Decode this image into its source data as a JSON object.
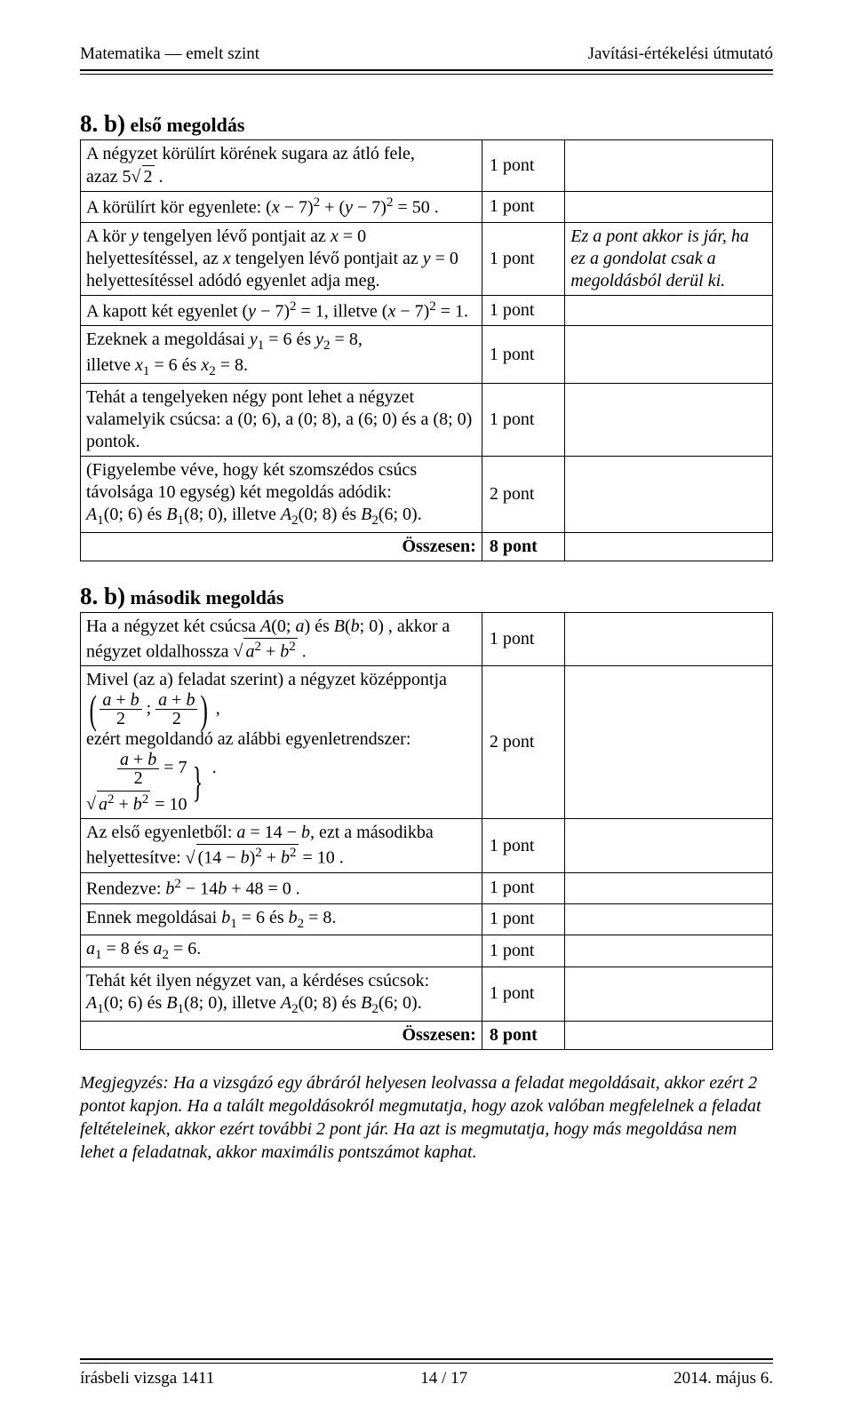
{
  "header": {
    "left": "Matematika — emelt szint",
    "right": "Javítási-értékelési útmutató"
  },
  "solution_a": {
    "heading_num": "8. b)",
    "heading_text": "első megoldás",
    "rows": [
      {
        "step_html": "A négyzet körülírt körének sugara az átló fele,<br>azaz 5<span class='sqrt-sign'></span><span class='sqrt'>2</span> .",
        "pts": "1 pont",
        "note": ""
      },
      {
        "step_html": "A körülírt kör egyenlete: (<span class='ital'>x</span> − 7)<span class='sup'>2</span> + (<span class='ital'>y</span> − 7)<span class='sup'>2</span> = 50 .",
        "pts": "1 pont",
        "note": ""
      },
      {
        "step_html": "A kör <span class='ital'>y</span> tengelyen lévő pontjait az <span class='ital'>x</span> = 0 helyettesítéssel, az <span class='ital'>x</span> tengelyen lévő pontjait az <span class='ital'>y</span> = 0 helyettesítéssel adódó egyenlet adja meg.",
        "pts": "1 pont",
        "note": "Ez a pont akkor is jár, ha ez a gondolat csak a megoldásból derül ki."
      },
      {
        "step_html": "A kapott két egyenlet (<span class='ital'>y</span> − 7)<span class='sup'>2</span> = 1, illetve (<span class='ital'>x</span> − 7)<span class='sup'>2</span> = 1.",
        "pts": "1 pont",
        "note": ""
      },
      {
        "step_html": "Ezeknek a megoldásai <span class='ital'>y</span><span class='sub'>1</span> = 6 és <span class='ital'>y</span><span class='sub'>2</span> = 8,<br>illetve <span class='ital'>x</span><span class='sub'>1</span> = 6 és <span class='ital'>x</span><span class='sub'>2</span> = 8.",
        "pts": "1 pont",
        "note": ""
      },
      {
        "step_html": "Tehát a tengelyeken négy pont lehet a négyzet valamelyik csúcsa: a (0; 6), a (0; 8), a (6; 0) és a (8; 0) pontok.",
        "pts": "1 pont",
        "note": ""
      },
      {
        "step_html": "(Figyelembe véve, hogy két szomszédos csúcs távolsága 10 egység) két megoldás adódik:<br><span class='ital'>A</span><span class='sub'>1</span>(0; 6) és <span class='ital'>B</span><span class='sub'>1</span>(8; 0), illetve <span class='ital'>A</span><span class='sub'>2</span>(0; 8) és <span class='ital'>B</span><span class='sub'>2</span>(6; 0).",
        "pts": "2 pont",
        "note": ""
      }
    ],
    "total_label": "Összesen:",
    "total_pts": "8 pont"
  },
  "solution_b": {
    "heading_num": "8. b)",
    "heading_text": "második megoldás",
    "rows": [
      {
        "step_html": "Ha a négyzet két csúcsa <span class='ital'>A</span>(0; <span class='ital'>a</span>) és <span class='ital'>B</span>(<span class='ital'>b</span>; 0) , akkor a<br>négyzet oldalhossza <span class='sqrt-sign'></span><span class='sqrt'><span class='ital'>a</span><span class='sup'>2</span> + <span class='ital'>b</span><span class='sup'>2</span></span> .",
        "pts": "1 pont",
        "note": ""
      },
      {
        "step_html": "Mivel (az a) feladat szerint) a négyzet középpontja<br><span class='lparen-big'>(</span><span class='frac'><span class='num'><span class='ital'>a</span> + <span class='ital'>b</span></span><span class='den'>2</span></span> ; <span class='frac'><span class='num'><span class='ital'>a</span> + <span class='ital'>b</span></span><span class='den'>2</span></span><span class='rparen-big'>)</span> ,<br>ezért megoldandó az alábbi egyenletrendszer:<br><span class='eqsys'><span class='eqsys-rows'><span><span class='frac'><span class='num'><span class='ital'>a</span> + <span class='ital'>b</span></span><span class='den'>2</span></span> = 7</span><span><span class='sqrt-sign'></span><span class='sqrt'><span class='ital'>a</span><span class='sup'>2</span> + <span class='ital'>b</span><span class='sup'>2</span></span> = 10</span></span><span class='bigbrace'>}</span></span> .",
        "pts": "2 pont",
        "note": ""
      },
      {
        "step_html": "Az első egyenletből: <span class='ital'>a</span> = 14 − <span class='ital'>b</span>, ezt a másodikba helyettesítve: <span class='sqrt-sign'></span><span class='sqrt'>(14 − <span class='ital'>b</span>)<span class='sup'>2</span> + <span class='ital'>b</span><span class='sup'>2</span></span> = 10 .",
        "pts": "1 pont",
        "note": ""
      },
      {
        "step_html": "Rendezve: <span class='ital'>b</span><span class='sup'>2</span> − 14<span class='ital'>b</span> + 48 = 0 .",
        "pts": "1 pont",
        "note": ""
      },
      {
        "step_html": "Ennek megoldásai <span class='ital'>b</span><span class='sub'>1</span> = 6 és <span class='ital'>b</span><span class='sub'>2</span> = 8.",
        "pts": "1 pont",
        "note": ""
      },
      {
        "step_html": "<span class='ital'>a</span><span class='sub'>1</span> = 8 és <span class='ital'>a</span><span class='sub'>2</span> = 6.",
        "pts": "1 pont",
        "note": ""
      },
      {
        "step_html": "Tehát két ilyen négyzet van, a kérdéses csúcsok:<br><span class='ital'>A</span><span class='sub'>1</span>(0; 6) és <span class='ital'>B</span><span class='sub'>1</span>(8; 0), illetve <span class='ital'>A</span><span class='sub'>2</span>(0; 8) és <span class='ital'>B</span><span class='sub'>2</span>(6; 0).",
        "pts": "1 pont",
        "note": ""
      }
    ],
    "total_label": "Összesen:",
    "total_pts": "8 pont"
  },
  "remark": "Megjegyzés: Ha a vizsgázó egy ábráról helyesen leolvassa a feladat megoldásait, akkor ezért 2 pontot kapjon. Ha a talált megoldásokról megmutatja, hogy azok valóban megfelelnek a feladat feltételeinek, akkor ezért további 2 pont jár. Ha azt is megmutatja, hogy más megoldása nem lehet a feladatnak, akkor maximális pontszámot kaphat.",
  "footer": {
    "left": "írásbeli vizsga 1411",
    "center": "14 / 17",
    "right": "2014. május 6."
  },
  "colors": {
    "text": "#000000",
    "bg": "#ffffff",
    "rule": "#000000"
  }
}
